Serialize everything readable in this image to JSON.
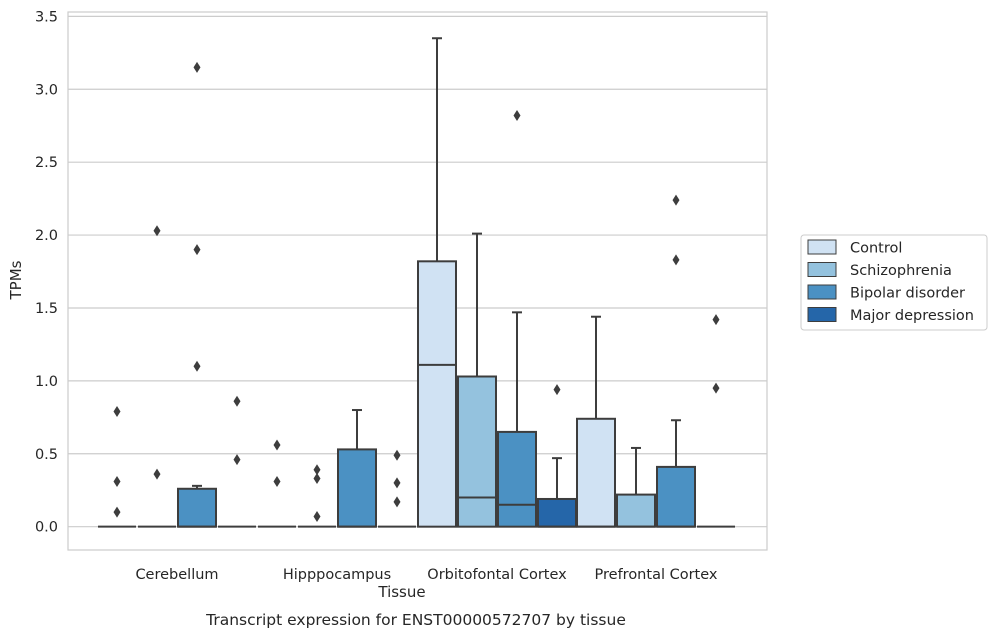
{
  "chart_data": {
    "type": "boxplot",
    "caption": "Transcript expression for ENST00000572707 by tissue",
    "xlabel": "Tissue",
    "ylabel": "TPMs",
    "ylim": [
      -0.16,
      3.53
    ],
    "yticks": [
      0.0,
      0.5,
      1.0,
      1.5,
      2.0,
      2.5,
      3.0,
      3.5
    ],
    "ytick_labels": [
      "0.0",
      "0.5",
      "1.0",
      "1.5",
      "2.0",
      "2.5",
      "3.0",
      "3.5"
    ],
    "grid": true,
    "legend_placement": "right",
    "categories": [
      "Cerebellum",
      "Hipppocampus",
      "Orbitofontal Cortex",
      "Prefrontal Cortex"
    ],
    "series": [
      {
        "name": "Control",
        "color": "#d0e2f3"
      },
      {
        "name": "Schizophrenia",
        "color": "#94c2de"
      },
      {
        "name": "Bipolar disorder",
        "color": "#4b91c3"
      },
      {
        "name": "Major depression",
        "color": "#2566a9"
      }
    ],
    "boxes": [
      {
        "category": 0,
        "series": 0,
        "q1": 0,
        "median": 0,
        "q3": 0,
        "whisker_low": 0,
        "whisker_high": 0,
        "outliers": [
          0.31,
          0.1,
          0.79
        ]
      },
      {
        "category": 0,
        "series": 1,
        "q1": 0,
        "median": 0,
        "q3": 0,
        "whisker_low": 0,
        "whisker_high": 0,
        "outliers": [
          0.36,
          2.03
        ]
      },
      {
        "category": 0,
        "series": 2,
        "q1": 0,
        "median": 0,
        "q3": 0.26,
        "whisker_low": 0,
        "whisker_high": 0.28,
        "outliers": [
          3.15,
          1.9,
          1.1
        ]
      },
      {
        "category": 0,
        "series": 3,
        "q1": 0,
        "median": 0,
        "q3": 0,
        "whisker_low": 0,
        "whisker_high": 0,
        "outliers": [
          0.86,
          0.46
        ]
      },
      {
        "category": 1,
        "series": 0,
        "q1": 0,
        "median": 0,
        "q3": 0,
        "whisker_low": 0,
        "whisker_high": 0,
        "outliers": [
          0.56,
          0.31
        ]
      },
      {
        "category": 1,
        "series": 1,
        "q1": 0,
        "median": 0,
        "q3": 0,
        "whisker_low": 0,
        "whisker_high": 0,
        "outliers": [
          0.39,
          0.33,
          0.07
        ]
      },
      {
        "category": 1,
        "series": 2,
        "q1": 0,
        "median": 0,
        "q3": 0.53,
        "whisker_low": 0,
        "whisker_high": 0.8,
        "outliers": []
      },
      {
        "category": 1,
        "series": 3,
        "q1": 0,
        "median": 0,
        "q3": 0,
        "whisker_low": 0,
        "whisker_high": 0,
        "outliers": [
          0.49,
          0.3,
          0.17
        ]
      },
      {
        "category": 2,
        "series": 0,
        "q1": 0,
        "median": 1.11,
        "q3": 1.82,
        "whisker_low": 0,
        "whisker_high": 3.35,
        "outliers": []
      },
      {
        "category": 2,
        "series": 1,
        "q1": 0,
        "median": 0.2,
        "q3": 1.03,
        "whisker_low": 0,
        "whisker_high": 2.01,
        "outliers": []
      },
      {
        "category": 2,
        "series": 2,
        "q1": 0,
        "median": 0.15,
        "q3": 0.65,
        "whisker_low": 0,
        "whisker_high": 1.47,
        "outliers": [
          2.82
        ]
      },
      {
        "category": 2,
        "series": 3,
        "q1": 0,
        "median": 0,
        "q3": 0.19,
        "whisker_low": 0,
        "whisker_high": 0.47,
        "outliers": [
          0.94
        ]
      },
      {
        "category": 3,
        "series": 0,
        "q1": 0,
        "median": 0,
        "q3": 0.74,
        "whisker_low": 0,
        "whisker_high": 1.44,
        "outliers": []
      },
      {
        "category": 3,
        "series": 1,
        "q1": 0,
        "median": 0,
        "q3": 0.22,
        "whisker_low": 0,
        "whisker_high": 0.54,
        "outliers": []
      },
      {
        "category": 3,
        "series": 2,
        "q1": 0,
        "median": 0,
        "q3": 0.41,
        "whisker_low": 0,
        "whisker_high": 0.73,
        "outliers": [
          2.24,
          1.83
        ]
      },
      {
        "category": 3,
        "series": 3,
        "q1": 0,
        "median": 0,
        "q3": 0,
        "whisker_low": 0,
        "whisker_high": 0,
        "outliers": [
          1.42,
          0.95
        ]
      }
    ]
  }
}
